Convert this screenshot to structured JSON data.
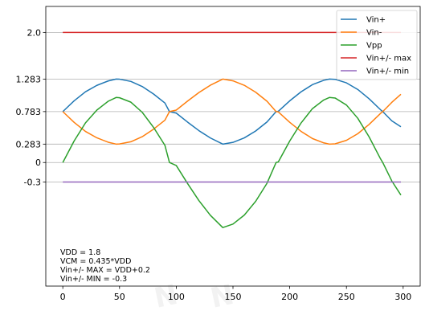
{
  "chart_data": {
    "type": "line",
    "title": "",
    "xlabel": "",
    "ylabel": "",
    "xlim": [
      -15,
      315
    ],
    "ylim": [
      -1.9,
      2.4
    ],
    "x_ticks": [
      "0",
      "50",
      "100",
      "150",
      "200",
      "250",
      "300"
    ],
    "x_tick_values": [
      0,
      50,
      100,
      150,
      200,
      250,
      300
    ],
    "y_ticks": [
      "2.0",
      "1.283",
      "0.783",
      "0.283",
      "0",
      "-0.3"
    ],
    "y_tick_values": [
      2.0,
      1.283,
      0.783,
      0.283,
      0,
      -0.3
    ],
    "grid": "horizontal",
    "legend_position": "top-right",
    "x": [
      0,
      10,
      20,
      30,
      40,
      47,
      50,
      60,
      70,
      80,
      90,
      94,
      100,
      110,
      120,
      130,
      141,
      150,
      160,
      170,
      180,
      188,
      190,
      200,
      210,
      220,
      230,
      235,
      240,
      250,
      260,
      270,
      280,
      282,
      290,
      298
    ],
    "series": [
      {
        "name": "Vin+",
        "color": "#1f77b4",
        "values": [
          0.783,
          0.949,
          1.088,
          1.186,
          1.254,
          1.283,
          1.281,
          1.247,
          1.169,
          1.053,
          0.915,
          0.783,
          0.76,
          0.621,
          0.49,
          0.378,
          0.283,
          0.31,
          0.379,
          0.485,
          0.624,
          0.783,
          0.788,
          0.948,
          1.087,
          1.197,
          1.264,
          1.283,
          1.279,
          1.225,
          1.123,
          0.98,
          0.812,
          0.783,
          0.641,
          0.55
        ]
      },
      {
        "name": "Vin-",
        "color": "#ff7f0e",
        "values": [
          0.783,
          0.617,
          0.478,
          0.38,
          0.312,
          0.283,
          0.285,
          0.319,
          0.397,
          0.513,
          0.651,
          0.783,
          0.806,
          0.945,
          1.076,
          1.188,
          1.283,
          1.256,
          1.187,
          1.081,
          0.942,
          0.783,
          0.778,
          0.618,
          0.479,
          0.369,
          0.302,
          0.283,
          0.287,
          0.341,
          0.443,
          0.586,
          0.754,
          0.783,
          0.925,
          1.05
        ]
      },
      {
        "name": "Vpp",
        "color": "#2ca02c",
        "values": [
          0.0,
          0.332,
          0.61,
          0.806,
          0.942,
          1.0,
          0.996,
          0.928,
          0.772,
          0.54,
          0.264,
          0.0,
          -0.046,
          -0.324,
          -0.586,
          -0.81,
          -1.0,
          -0.946,
          -0.808,
          -0.596,
          -0.318,
          0.0,
          0.01,
          0.33,
          0.608,
          0.828,
          0.962,
          1.0,
          0.992,
          0.884,
          0.68,
          0.394,
          0.058,
          0.0,
          -0.284,
          -0.5
        ]
      },
      {
        "name": "Vin+/- max",
        "color": "#d62728",
        "values": [
          2.0,
          2.0,
          2.0,
          2.0,
          2.0,
          2.0,
          2.0,
          2.0,
          2.0,
          2.0,
          2.0,
          2.0,
          2.0,
          2.0,
          2.0,
          2.0,
          2.0,
          2.0,
          2.0,
          2.0,
          2.0,
          2.0,
          2.0,
          2.0,
          2.0,
          2.0,
          2.0,
          2.0,
          2.0,
          2.0,
          2.0,
          2.0,
          2.0,
          2.0,
          2.0,
          2.0
        ]
      },
      {
        "name": "Vin+/- min",
        "color": "#9467bd",
        "values": [
          -0.3,
          -0.3,
          -0.3,
          -0.3,
          -0.3,
          -0.3,
          -0.3,
          -0.3,
          -0.3,
          -0.3,
          -0.3,
          -0.3,
          -0.3,
          -0.3,
          -0.3,
          -0.3,
          -0.3,
          -0.3,
          -0.3,
          -0.3,
          -0.3,
          -0.3,
          -0.3,
          -0.3,
          -0.3,
          -0.3,
          -0.3,
          -0.3,
          -0.3,
          -0.3,
          -0.3,
          -0.3,
          -0.3,
          -0.3,
          -0.3,
          -0.3
        ]
      }
    ],
    "annotations": [
      "VDD = 1.8",
      "VCM = 0.435*VDD",
      "Vin+/- MAX = VDD+0.2",
      "Vin+/- MIN = -0.3"
    ]
  }
}
